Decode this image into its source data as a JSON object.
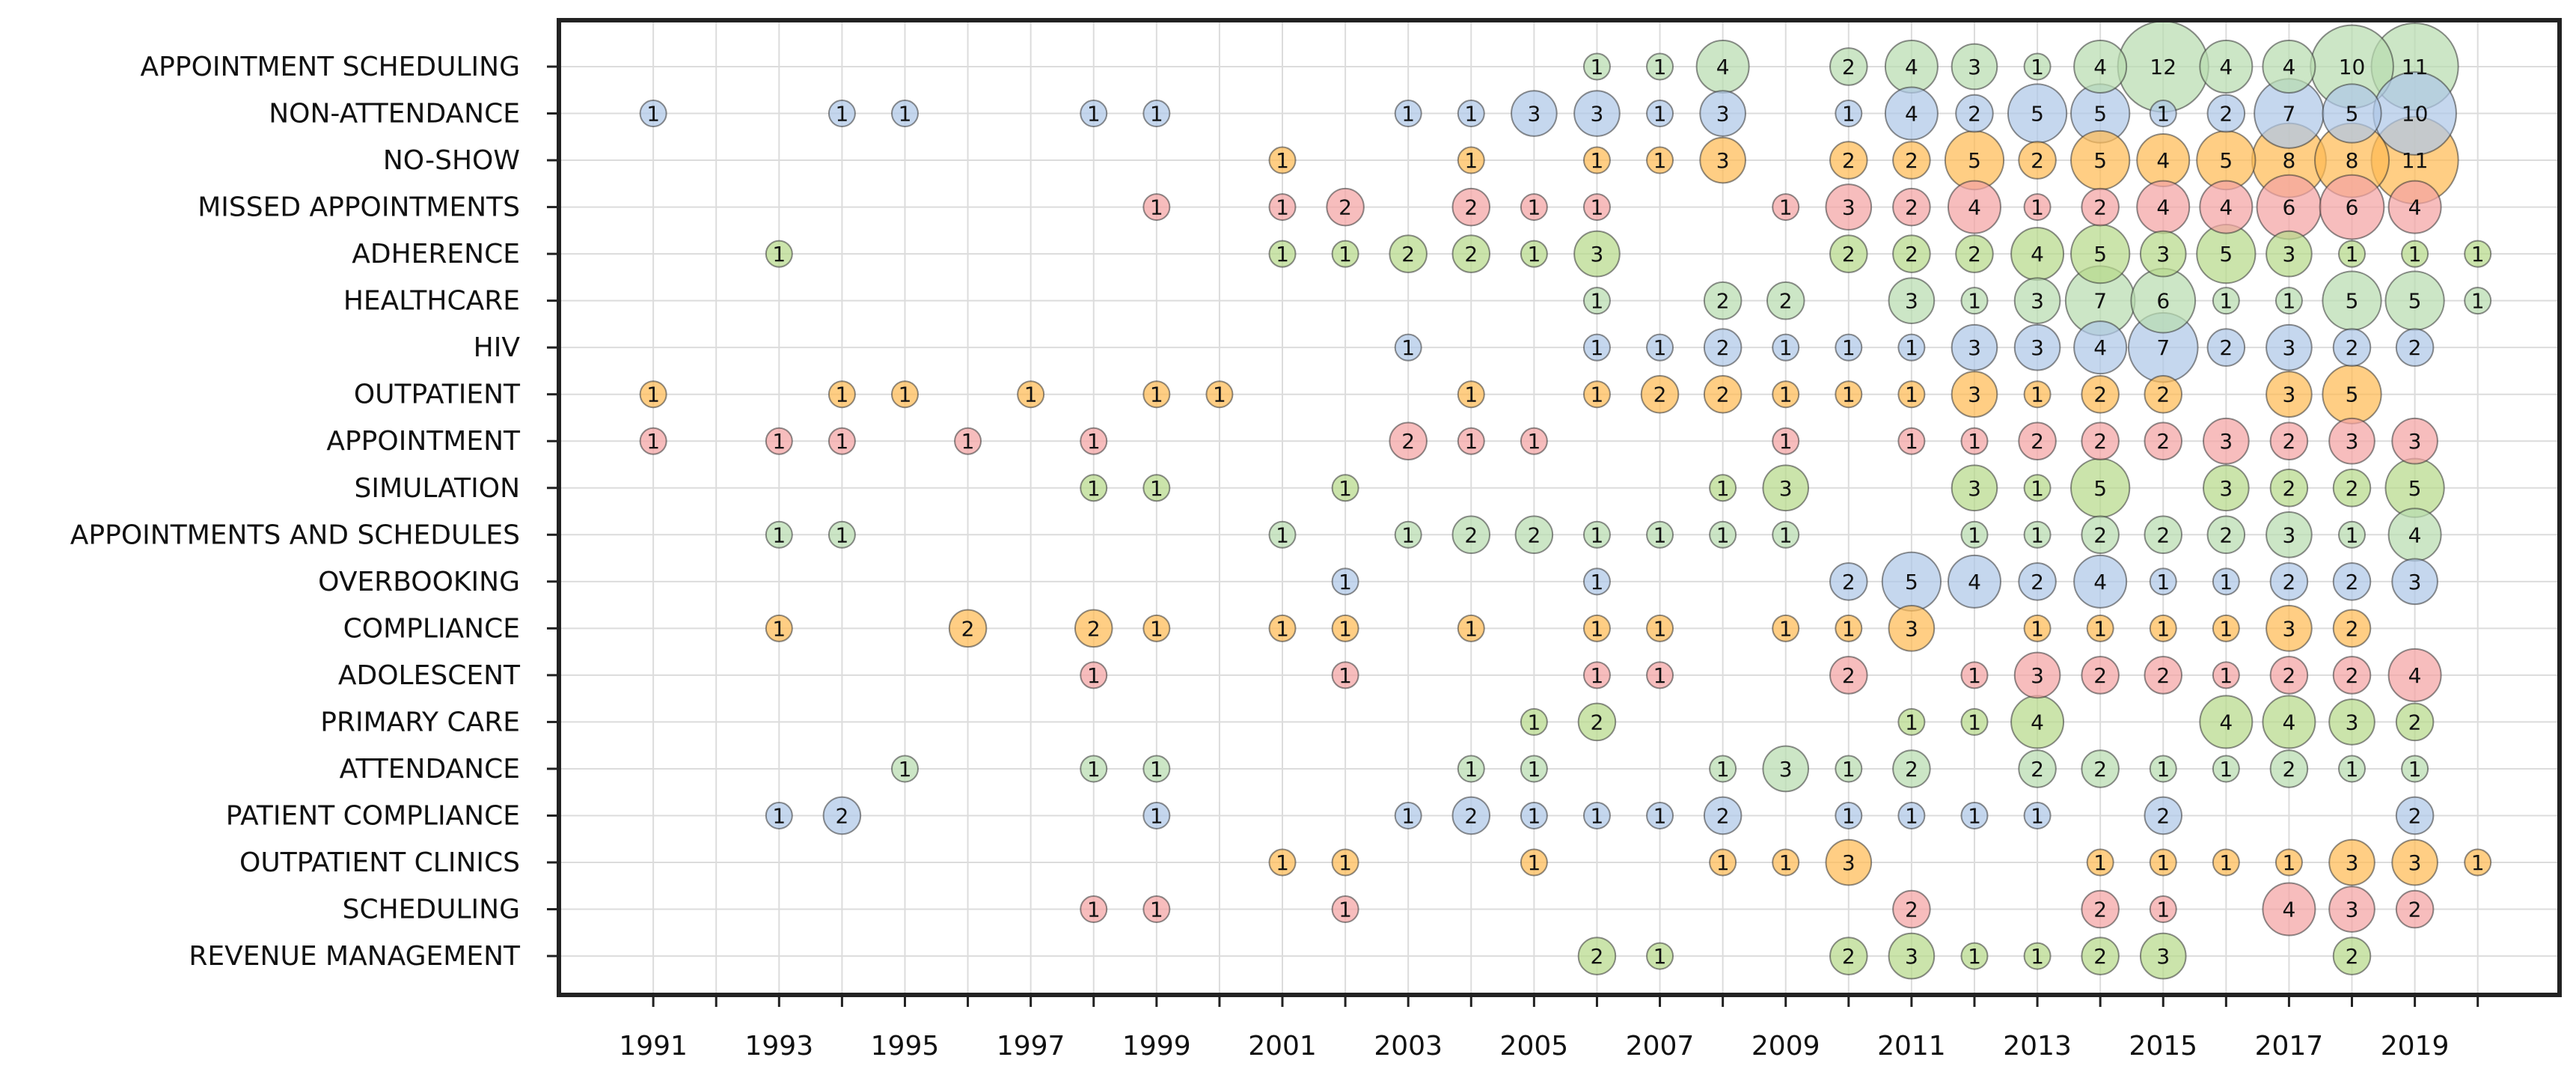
{
  "chart_data": {
    "type": "scatter",
    "subtype": "bubble",
    "title": "",
    "xlabel": "",
    "ylabel": "",
    "xlim": [
      1989.5,
      2021.3
    ],
    "x_ticks": [
      1991,
      1992,
      1993,
      1994,
      1995,
      1996,
      1997,
      1998,
      1999,
      2000,
      2001,
      2002,
      2003,
      2004,
      2005,
      2006,
      2007,
      2008,
      2009,
      2010,
      2011,
      2012,
      2013,
      2014,
      2015,
      2016,
      2017,
      2018,
      2019,
      2020
    ],
    "x_tick_labels": [
      "1991",
      "1993",
      "1995",
      "1997",
      "1999",
      "2001",
      "2003",
      "2005",
      "2007",
      "2009",
      "2011",
      "2013",
      "2015",
      "2017",
      "2019"
    ],
    "grid": true,
    "colors": [
      "#aec7e8",
      "#ffbb55",
      "#f4a3a3",
      "#b7d98b",
      "#b9dcb0"
    ],
    "categories": [
      {
        "name": "APPOINTMENT SCHEDULING",
        "color": "#b9dcb0",
        "points": [
          [
            2006,
            1
          ],
          [
            2007,
            1
          ],
          [
            2008,
            4
          ],
          [
            2010,
            2
          ],
          [
            2011,
            4
          ],
          [
            2012,
            3
          ],
          [
            2013,
            1
          ],
          [
            2014,
            4
          ],
          [
            2015,
            12
          ],
          [
            2016,
            4
          ],
          [
            2017,
            4
          ],
          [
            2018,
            10
          ],
          [
            2019,
            11
          ]
        ]
      },
      {
        "name": "NON-ATTENDANCE",
        "color": "#aec7e8",
        "points": [
          [
            1991,
            1
          ],
          [
            1994,
            1
          ],
          [
            1995,
            1
          ],
          [
            1998,
            1
          ],
          [
            1999,
            1
          ],
          [
            2003,
            1
          ],
          [
            2004,
            1
          ],
          [
            2005,
            3
          ],
          [
            2006,
            3
          ],
          [
            2007,
            1
          ],
          [
            2008,
            3
          ],
          [
            2010,
            1
          ],
          [
            2011,
            4
          ],
          [
            2012,
            2
          ],
          [
            2013,
            5
          ],
          [
            2014,
            5
          ],
          [
            2015,
            1
          ],
          [
            2016,
            2
          ],
          [
            2017,
            7
          ],
          [
            2018,
            5
          ],
          [
            2019,
            10
          ]
        ]
      },
      {
        "name": "NO-SHOW",
        "color": "#ffbb55",
        "points": [
          [
            2001,
            1
          ],
          [
            2004,
            1
          ],
          [
            2006,
            1
          ],
          [
            2007,
            1
          ],
          [
            2008,
            3
          ],
          [
            2010,
            2
          ],
          [
            2011,
            2
          ],
          [
            2012,
            5
          ],
          [
            2013,
            2
          ],
          [
            2014,
            5
          ],
          [
            2015,
            4
          ],
          [
            2016,
            5
          ],
          [
            2017,
            8
          ],
          [
            2018,
            8
          ],
          [
            2019,
            11
          ]
        ]
      },
      {
        "name": "MISSED APPOINTMENTS",
        "color": "#f4a3a3",
        "points": [
          [
            1999,
            1
          ],
          [
            2001,
            1
          ],
          [
            2002,
            2
          ],
          [
            2004,
            2
          ],
          [
            2005,
            1
          ],
          [
            2006,
            1
          ],
          [
            2009,
            1
          ],
          [
            2010,
            3
          ],
          [
            2011,
            2
          ],
          [
            2012,
            4
          ],
          [
            2013,
            1
          ],
          [
            2014,
            2
          ],
          [
            2015,
            4
          ],
          [
            2016,
            4
          ],
          [
            2017,
            6
          ],
          [
            2018,
            6
          ],
          [
            2019,
            4
          ]
        ]
      },
      {
        "name": "ADHERENCE",
        "color": "#b7d98b",
        "points": [
          [
            1993,
            1
          ],
          [
            2001,
            1
          ],
          [
            2002,
            1
          ],
          [
            2003,
            2
          ],
          [
            2004,
            2
          ],
          [
            2005,
            1
          ],
          [
            2006,
            3
          ],
          [
            2010,
            2
          ],
          [
            2011,
            2
          ],
          [
            2012,
            2
          ],
          [
            2013,
            4
          ],
          [
            2014,
            5
          ],
          [
            2015,
            3
          ],
          [
            2016,
            5
          ],
          [
            2017,
            3
          ],
          [
            2018,
            1
          ],
          [
            2019,
            1
          ],
          [
            2020,
            1
          ]
        ]
      },
      {
        "name": "HEALTHCARE",
        "color": "#b9dcb0",
        "points": [
          [
            2006,
            1
          ],
          [
            2008,
            2
          ],
          [
            2009,
            2
          ],
          [
            2011,
            3
          ],
          [
            2012,
            1
          ],
          [
            2013,
            3
          ],
          [
            2014,
            7
          ],
          [
            2015,
            6
          ],
          [
            2016,
            1
          ],
          [
            2017,
            1
          ],
          [
            2018,
            5
          ],
          [
            2019,
            5
          ],
          [
            2020,
            1
          ]
        ]
      },
      {
        "name": "HIV",
        "color": "#aec7e8",
        "points": [
          [
            2003,
            1
          ],
          [
            2006,
            1
          ],
          [
            2007,
            1
          ],
          [
            2008,
            2
          ],
          [
            2009,
            1
          ],
          [
            2010,
            1
          ],
          [
            2011,
            1
          ],
          [
            2012,
            3
          ],
          [
            2013,
            3
          ],
          [
            2014,
            4
          ],
          [
            2015,
            7
          ],
          [
            2016,
            2
          ],
          [
            2017,
            3
          ],
          [
            2018,
            2
          ],
          [
            2019,
            2
          ]
        ]
      },
      {
        "name": "OUTPATIENT",
        "color": "#ffbb55",
        "points": [
          [
            1991,
            1
          ],
          [
            1994,
            1
          ],
          [
            1995,
            1
          ],
          [
            1997,
            1
          ],
          [
            1999,
            1
          ],
          [
            2000,
            1
          ],
          [
            2004,
            1
          ],
          [
            2006,
            1
          ],
          [
            2007,
            2
          ],
          [
            2008,
            2
          ],
          [
            2009,
            1
          ],
          [
            2010,
            1
          ],
          [
            2011,
            1
          ],
          [
            2012,
            3
          ],
          [
            2013,
            1
          ],
          [
            2014,
            2
          ],
          [
            2015,
            2
          ],
          [
            2017,
            3
          ],
          [
            2018,
            5
          ]
        ]
      },
      {
        "name": "APPOINTMENT",
        "color": "#f4a3a3",
        "points": [
          [
            1991,
            1
          ],
          [
            1993,
            1
          ],
          [
            1994,
            1
          ],
          [
            1996,
            1
          ],
          [
            1998,
            1
          ],
          [
            2003,
            2
          ],
          [
            2004,
            1
          ],
          [
            2005,
            1
          ],
          [
            2009,
            1
          ],
          [
            2011,
            1
          ],
          [
            2012,
            1
          ],
          [
            2013,
            2
          ],
          [
            2014,
            2
          ],
          [
            2015,
            2
          ],
          [
            2016,
            3
          ],
          [
            2017,
            2
          ],
          [
            2018,
            3
          ],
          [
            2019,
            3
          ]
        ]
      },
      {
        "name": "SIMULATION",
        "color": "#b7d98b",
        "points": [
          [
            1998,
            1
          ],
          [
            1999,
            1
          ],
          [
            2002,
            1
          ],
          [
            2008,
            1
          ],
          [
            2009,
            3
          ],
          [
            2012,
            3
          ],
          [
            2013,
            1
          ],
          [
            2014,
            5
          ],
          [
            2016,
            3
          ],
          [
            2017,
            2
          ],
          [
            2018,
            2
          ],
          [
            2019,
            5
          ]
        ]
      },
      {
        "name": "APPOINTMENTS AND SCHEDULES",
        "color": "#b9dcb0",
        "points": [
          [
            1993,
            1
          ],
          [
            1994,
            1
          ],
          [
            2001,
            1
          ],
          [
            2003,
            1
          ],
          [
            2004,
            2
          ],
          [
            2005,
            2
          ],
          [
            2006,
            1
          ],
          [
            2007,
            1
          ],
          [
            2008,
            1
          ],
          [
            2009,
            1
          ],
          [
            2012,
            1
          ],
          [
            2013,
            1
          ],
          [
            2014,
            2
          ],
          [
            2015,
            2
          ],
          [
            2016,
            2
          ],
          [
            2017,
            3
          ],
          [
            2018,
            1
          ],
          [
            2019,
            4
          ]
        ]
      },
      {
        "name": "OVERBOOKING",
        "color": "#aec7e8",
        "points": [
          [
            2002,
            1
          ],
          [
            2006,
            1
          ],
          [
            2010,
            2
          ],
          [
            2011,
            5
          ],
          [
            2012,
            4
          ],
          [
            2013,
            2
          ],
          [
            2014,
            4
          ],
          [
            2015,
            1
          ],
          [
            2016,
            1
          ],
          [
            2017,
            2
          ],
          [
            2018,
            2
          ],
          [
            2019,
            3
          ]
        ]
      },
      {
        "name": "COMPLIANCE",
        "color": "#ffbb55",
        "points": [
          [
            1993,
            1
          ],
          [
            1996,
            2
          ],
          [
            1998,
            2
          ],
          [
            1999,
            1
          ],
          [
            2001,
            1
          ],
          [
            2002,
            1
          ],
          [
            2004,
            1
          ],
          [
            2006,
            1
          ],
          [
            2007,
            1
          ],
          [
            2009,
            1
          ],
          [
            2010,
            1
          ],
          [
            2011,
            3
          ],
          [
            2013,
            1
          ],
          [
            2014,
            1
          ],
          [
            2015,
            1
          ],
          [
            2016,
            1
          ],
          [
            2017,
            3
          ],
          [
            2018,
            2
          ]
        ]
      },
      {
        "name": "ADOLESCENT",
        "color": "#f4a3a3",
        "points": [
          [
            1998,
            1
          ],
          [
            2002,
            1
          ],
          [
            2006,
            1
          ],
          [
            2007,
            1
          ],
          [
            2010,
            2
          ],
          [
            2012,
            1
          ],
          [
            2013,
            3
          ],
          [
            2014,
            2
          ],
          [
            2015,
            2
          ],
          [
            2016,
            1
          ],
          [
            2017,
            2
          ],
          [
            2018,
            2
          ],
          [
            2019,
            4
          ]
        ]
      },
      {
        "name": "PRIMARY CARE",
        "color": "#b7d98b",
        "points": [
          [
            2005,
            1
          ],
          [
            2006,
            2
          ],
          [
            2011,
            1
          ],
          [
            2012,
            1
          ],
          [
            2013,
            4
          ],
          [
            2016,
            4
          ],
          [
            2017,
            4
          ],
          [
            2018,
            3
          ],
          [
            2019,
            2
          ]
        ]
      },
      {
        "name": "ATTENDANCE",
        "color": "#b9dcb0",
        "points": [
          [
            1995,
            1
          ],
          [
            1998,
            1
          ],
          [
            1999,
            1
          ],
          [
            2004,
            1
          ],
          [
            2005,
            1
          ],
          [
            2008,
            1
          ],
          [
            2009,
            3
          ],
          [
            2010,
            1
          ],
          [
            2011,
            2
          ],
          [
            2013,
            2
          ],
          [
            2014,
            2
          ],
          [
            2015,
            1
          ],
          [
            2016,
            1
          ],
          [
            2017,
            2
          ],
          [
            2018,
            1
          ],
          [
            2019,
            1
          ]
        ]
      },
      {
        "name": "PATIENT COMPLIANCE",
        "color": "#aec7e8",
        "points": [
          [
            1993,
            1
          ],
          [
            1994,
            2
          ],
          [
            1999,
            1
          ],
          [
            2003,
            1
          ],
          [
            2004,
            2
          ],
          [
            2005,
            1
          ],
          [
            2006,
            1
          ],
          [
            2007,
            1
          ],
          [
            2008,
            2
          ],
          [
            2010,
            1
          ],
          [
            2011,
            1
          ],
          [
            2012,
            1
          ],
          [
            2013,
            1
          ],
          [
            2015,
            2
          ],
          [
            2019,
            2
          ]
        ]
      },
      {
        "name": "OUTPATIENT CLINICS",
        "color": "#ffbb55",
        "points": [
          [
            2001,
            1
          ],
          [
            2002,
            1
          ],
          [
            2005,
            1
          ],
          [
            2008,
            1
          ],
          [
            2009,
            1
          ],
          [
            2010,
            3
          ],
          [
            2014,
            1
          ],
          [
            2015,
            1
          ],
          [
            2016,
            1
          ],
          [
            2017,
            1
          ],
          [
            2018,
            3
          ],
          [
            2019,
            3
          ],
          [
            2020,
            1
          ]
        ]
      },
      {
        "name": "SCHEDULING",
        "color": "#f4a3a3",
        "points": [
          [
            1998,
            1
          ],
          [
            1999,
            1
          ],
          [
            2002,
            1
          ],
          [
            2011,
            2
          ],
          [
            2014,
            2
          ],
          [
            2015,
            1
          ],
          [
            2017,
            4
          ],
          [
            2018,
            3
          ],
          [
            2019,
            2
          ]
        ]
      },
      {
        "name": "REVENUE MANAGEMENT",
        "color": "#b7d98b",
        "points": [
          [
            2006,
            2
          ],
          [
            2007,
            1
          ],
          [
            2010,
            2
          ],
          [
            2011,
            3
          ],
          [
            2012,
            1
          ],
          [
            2013,
            1
          ],
          [
            2014,
            2
          ],
          [
            2015,
            3
          ],
          [
            2018,
            2
          ]
        ]
      }
    ]
  }
}
